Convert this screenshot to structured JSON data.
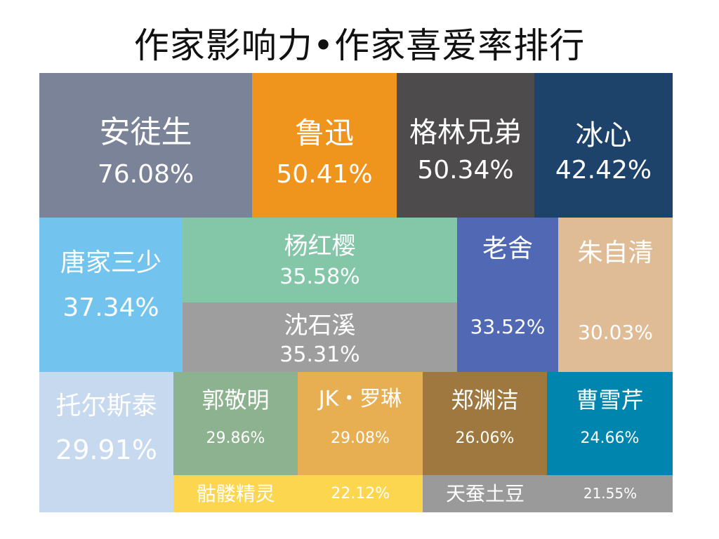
{
  "chart_data": {
    "type": "treemap",
    "title": "作家影响力•作家喜爱率排行",
    "items": [
      {
        "name": "安徒生",
        "value": 76.08,
        "label": "76.08%",
        "color": "#7b8398"
      },
      {
        "name": "鲁迅",
        "value": 50.41,
        "label": "50.41%",
        "color": "#ef941c"
      },
      {
        "name": "格林兄弟",
        "value": 50.34,
        "label": "50.34%",
        "color": "#4d4b4c"
      },
      {
        "name": "冰心",
        "value": 42.42,
        "label": "42.42%",
        "color": "#1d436a"
      },
      {
        "name": "唐家三少",
        "value": 37.34,
        "label": "37.34%",
        "color": "#72c4ee"
      },
      {
        "name": "杨红樱",
        "value": 35.58,
        "label": "35.58%",
        "color": "#83c6a8"
      },
      {
        "name": "沈石溪",
        "value": 35.31,
        "label": "35.31%",
        "color": "#9e9e9e"
      },
      {
        "name": "老舍",
        "value": 33.52,
        "label": "33.52%",
        "color": "#5169b4"
      },
      {
        "name": "朱自清",
        "value": 30.03,
        "label": "30.03%",
        "color": "#dfbc95"
      },
      {
        "name": "托尔斯泰",
        "value": 29.91,
        "label": "29.91%",
        "color": "#c6d9ee"
      },
      {
        "name": "郭敬明",
        "value": 29.86,
        "label": "29.86%",
        "color": "#8db28f"
      },
      {
        "name": "JK・罗琳",
        "value": 29.08,
        "label": "29.08%",
        "color": "#e8ae52"
      },
      {
        "name": "郑渊洁",
        "value": 26.06,
        "label": "26.06%",
        "color": "#9e783e"
      },
      {
        "name": "曹雪芹",
        "value": 24.66,
        "label": "24.66%",
        "color": "#0085ae"
      },
      {
        "name": "骷髅精灵",
        "value": 22.12,
        "label": "22.12%",
        "color": "#fdd64f"
      },
      {
        "name": "天蚕土豆",
        "value": 21.55,
        "label": "21.55%",
        "color": "#9a9a9a"
      }
    ]
  }
}
